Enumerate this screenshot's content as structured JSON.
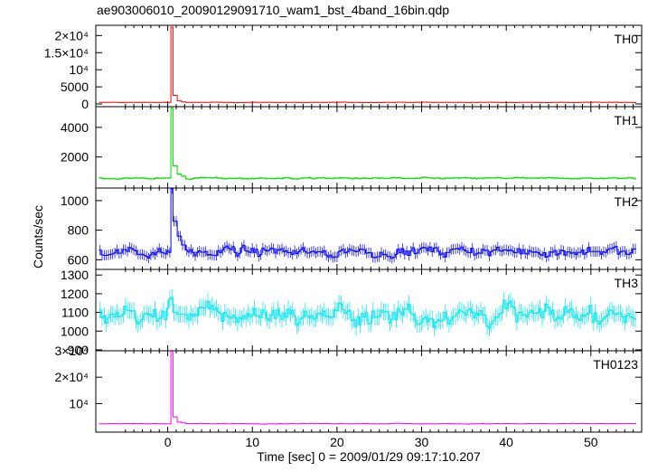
{
  "title": "ae903006010_20090129091710_wam1_bst_4band_16bin.qdp",
  "ylabel": "Counts/sec",
  "xlabel": "Time [sec] 0 = 2009/01/29 09:17:10.207",
  "chart_data": {
    "type": "line",
    "title": "ae903006010_20090129091710_wam1_bst_4band_16bin.qdp",
    "xlabel": "Time [sec] 0 = 2009/01/29 09:17:10.207",
    "ylabel": "Counts/sec",
    "xlim": [
      -8.5,
      56
    ],
    "x_ticks": [
      0,
      10,
      20,
      30,
      40,
      50
    ],
    "x_tick_labels": [
      "0",
      "10",
      "20",
      "30",
      "40",
      "50"
    ],
    "bin_seconds": 0.25,
    "burst_time": 0.5,
    "panels": [
      {
        "name": "TH0",
        "color": "#ff0000",
        "ylim": [
          -800,
          23000
        ],
        "ticks": [
          0,
          5000,
          10000,
          15000,
          20000
        ],
        "tick_labels": [
          "0",
          "5000",
          "10⁴",
          "1.5×10⁴",
          "2×10⁴"
        ],
        "baseline": 450,
        "noise": 90,
        "error": 80,
        "peak": 22500,
        "tail": [
          2500,
          900,
          600
        ]
      },
      {
        "name": "TH1",
        "color": "#00dd00",
        "ylim": [
          -100,
          5400
        ],
        "ticks": [
          2000,
          4000
        ],
        "tick_labels": [
          "2000",
          "4000"
        ],
        "baseline": 560,
        "noise": 70,
        "error": 60,
        "peak": 5300,
        "tail": [
          1400,
          850,
          700
        ]
      },
      {
        "name": "TH2",
        "color": "#0000ff",
        "ylim": [
          535,
          1085
        ],
        "ticks": [
          600,
          800,
          1000
        ],
        "tick_labels": [
          "600",
          "800",
          "1000"
        ],
        "baseline": 655,
        "noise": 45,
        "error": 35,
        "peak": 1080,
        "tail": [
          860,
          760,
          700
        ]
      },
      {
        "name": "TH3",
        "color": "#00e5ee",
        "ylim": [
          895,
          1330
        ],
        "ticks": [
          900,
          1000,
          1100,
          1200,
          1300
        ],
        "tick_labels": [
          "900",
          "1000",
          "1100",
          "1200",
          "1300"
        ],
        "baseline": 1090,
        "noise": 75,
        "error": 45,
        "peak": 1180,
        "tail": [
          1100,
          1090,
          1090
        ]
      },
      {
        "name": "TH0123",
        "color": "#ff00ff",
        "ylim": [
          -800,
          30000
        ],
        "ticks": [
          10000,
          20000,
          30000
        ],
        "tick_labels": [
          "10⁴",
          "2×10⁴",
          "3×10⁴"
        ],
        "baseline": 2400,
        "noise": 160,
        "error": 120,
        "peak": 29800,
        "tail": [
          5000,
          3000,
          2700
        ]
      }
    ]
  }
}
